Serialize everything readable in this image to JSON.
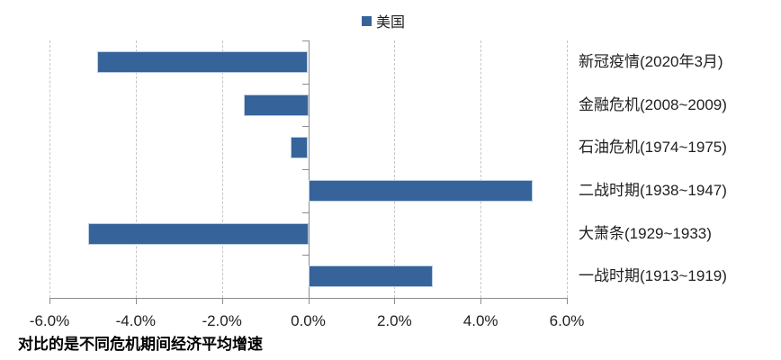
{
  "colors": {
    "bar": "#36639A",
    "bar_border": "#B9CDE5",
    "gridline": "#C6C6C6",
    "axis": "#8C8C8C",
    "text": "#1F1F1F"
  },
  "chart_data": {
    "type": "bar",
    "orientation": "horizontal",
    "title": "",
    "footnote": "对比的是不同危机期间经济平均增速",
    "legend_position": "top",
    "grid": "vertical-dashed",
    "xlim": [
      -6,
      6
    ],
    "x_tick_values": [
      -6,
      -4,
      -2,
      0,
      2,
      4,
      6
    ],
    "x_ticks": [
      "-6.0%",
      "-4.0%",
      "-2.0%",
      "0.0%",
      "2.0%",
      "4.0%",
      "6.0%"
    ],
    "unit": "%",
    "categories": [
      "新冠疫情(2020年3月)",
      "金融危机(2008~2009)",
      "石油危机(1974~1975)",
      "二战时期(1938~1947)",
      "大萧条(1929~1933)",
      "一战时期(1913~1919)"
    ],
    "series": [
      {
        "name": "美国",
        "values": [
          -4.9,
          -1.5,
          -0.4,
          5.2,
          -5.1,
          2.9
        ]
      }
    ]
  }
}
